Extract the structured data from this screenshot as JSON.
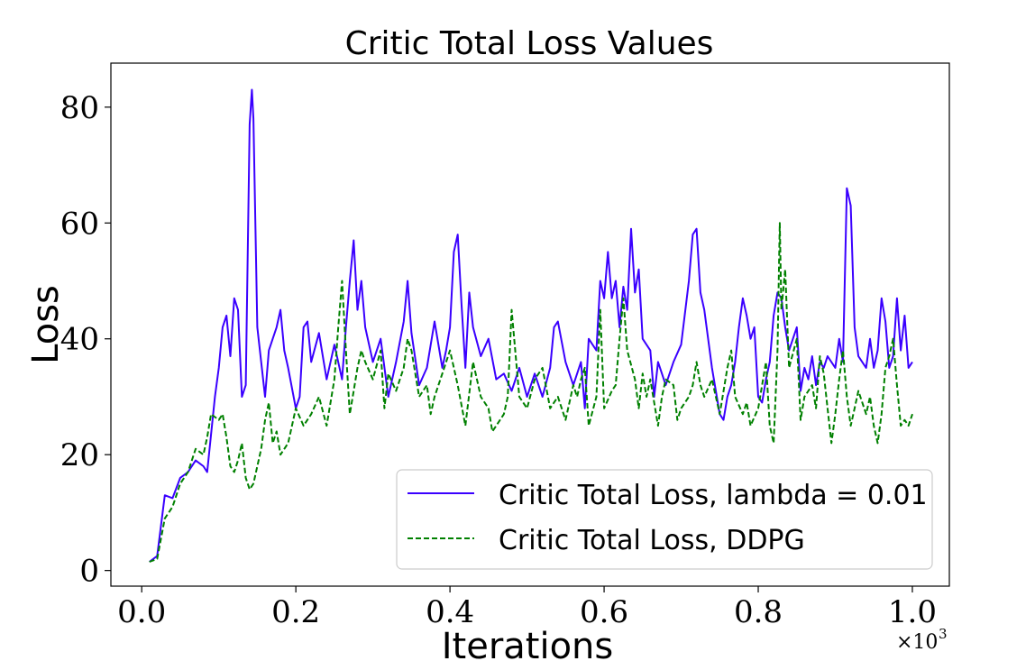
{
  "chart_data": {
    "type": "line",
    "title": "Critic Total Loss Values",
    "xlabel": "Iterations",
    "ylabel": "Loss",
    "x_scale_label": "×10",
    "x_scale_exp": "3",
    "xlim": [
      -0.04,
      1.048
    ],
    "ylim": [
      -2.7,
      87.6
    ],
    "xticks": [
      0.0,
      0.2,
      0.4,
      0.6,
      0.8,
      1.0
    ],
    "xtick_labels": [
      "0.0",
      "0.2",
      "0.4",
      "0.6",
      "0.8",
      "1.0"
    ],
    "yticks": [
      0,
      20,
      40,
      60,
      80
    ],
    "ytick_labels": [
      "0",
      "20",
      "40",
      "60",
      "80"
    ],
    "grid": false,
    "legend_position": "lower-right",
    "series": [
      {
        "name": "Critic Total Loss, lambda = 0.01",
        "color": "#3a00ff",
        "dash": "solid",
        "points": [
          [
            0.01,
            1.5
          ],
          [
            0.02,
            2.5
          ],
          [
            0.03,
            13
          ],
          [
            0.04,
            12.5
          ],
          [
            0.05,
            16
          ],
          [
            0.06,
            17
          ],
          [
            0.07,
            19
          ],
          [
            0.08,
            18
          ],
          [
            0.085,
            17
          ],
          [
            0.095,
            30
          ],
          [
            0.1,
            35
          ],
          [
            0.105,
            42
          ],
          [
            0.11,
            44
          ],
          [
            0.115,
            37
          ],
          [
            0.12,
            47
          ],
          [
            0.125,
            45
          ],
          [
            0.13,
            30
          ],
          [
            0.135,
            32
          ],
          [
            0.14,
            77
          ],
          [
            0.143,
            83
          ],
          [
            0.145,
            78
          ],
          [
            0.15,
            42
          ],
          [
            0.155,
            36
          ],
          [
            0.16,
            30
          ],
          [
            0.165,
            38
          ],
          [
            0.17,
            40
          ],
          [
            0.175,
            42
          ],
          [
            0.18,
            45
          ],
          [
            0.185,
            38
          ],
          [
            0.19,
            35
          ],
          [
            0.2,
            28
          ],
          [
            0.205,
            30
          ],
          [
            0.21,
            42
          ],
          [
            0.215,
            43
          ],
          [
            0.22,
            36
          ],
          [
            0.23,
            41
          ],
          [
            0.24,
            33
          ],
          [
            0.25,
            39
          ],
          [
            0.26,
            33
          ],
          [
            0.265,
            42
          ],
          [
            0.27,
            50
          ],
          [
            0.275,
            57
          ],
          [
            0.28,
            45
          ],
          [
            0.285,
            50
          ],
          [
            0.29,
            42
          ],
          [
            0.3,
            36
          ],
          [
            0.31,
            40
          ],
          [
            0.32,
            30
          ],
          [
            0.33,
            36
          ],
          [
            0.34,
            43
          ],
          [
            0.345,
            50
          ],
          [
            0.35,
            41
          ],
          [
            0.36,
            32
          ],
          [
            0.37,
            35
          ],
          [
            0.38,
            43
          ],
          [
            0.39,
            35
          ],
          [
            0.395,
            38
          ],
          [
            0.4,
            42
          ],
          [
            0.405,
            55
          ],
          [
            0.41,
            58
          ],
          [
            0.415,
            46
          ],
          [
            0.42,
            35
          ],
          [
            0.425,
            48
          ],
          [
            0.43,
            42
          ],
          [
            0.44,
            37
          ],
          [
            0.45,
            40
          ],
          [
            0.46,
            33
          ],
          [
            0.47,
            34
          ],
          [
            0.48,
            31
          ],
          [
            0.49,
            35
          ],
          [
            0.5,
            30
          ],
          [
            0.51,
            34
          ],
          [
            0.52,
            30
          ],
          [
            0.53,
            35
          ],
          [
            0.535,
            42
          ],
          [
            0.54,
            43
          ],
          [
            0.55,
            36
          ],
          [
            0.56,
            32
          ],
          [
            0.57,
            36
          ],
          [
            0.575,
            28
          ],
          [
            0.58,
            40
          ],
          [
            0.59,
            38
          ],
          [
            0.595,
            50
          ],
          [
            0.6,
            47
          ],
          [
            0.605,
            55
          ],
          [
            0.61,
            47
          ],
          [
            0.615,
            50
          ],
          [
            0.62,
            42
          ],
          [
            0.625,
            49
          ],
          [
            0.63,
            45
          ],
          [
            0.635,
            59
          ],
          [
            0.64,
            48
          ],
          [
            0.645,
            52
          ],
          [
            0.65,
            40
          ],
          [
            0.66,
            38
          ],
          [
            0.665,
            30
          ],
          [
            0.67,
            36
          ],
          [
            0.675,
            34
          ],
          [
            0.68,
            32
          ],
          [
            0.69,
            36
          ],
          [
            0.7,
            39
          ],
          [
            0.71,
            50
          ],
          [
            0.715,
            58
          ],
          [
            0.72,
            59
          ],
          [
            0.725,
            48
          ],
          [
            0.73,
            45
          ],
          [
            0.74,
            35
          ],
          [
            0.75,
            27
          ],
          [
            0.755,
            26
          ],
          [
            0.76,
            30
          ],
          [
            0.765,
            32
          ],
          [
            0.77,
            36
          ],
          [
            0.775,
            42
          ],
          [
            0.78,
            47
          ],
          [
            0.785,
            44
          ],
          [
            0.79,
            40
          ],
          [
            0.795,
            42
          ],
          [
            0.8,
            30
          ],
          [
            0.805,
            29
          ],
          [
            0.81,
            33
          ],
          [
            0.815,
            36
          ],
          [
            0.82,
            44
          ],
          [
            0.825,
            48
          ],
          [
            0.83,
            47
          ],
          [
            0.835,
            42
          ],
          [
            0.84,
            38
          ],
          [
            0.845,
            40
          ],
          [
            0.85,
            42
          ],
          [
            0.855,
            31
          ],
          [
            0.86,
            35
          ],
          [
            0.865,
            33
          ],
          [
            0.87,
            37
          ],
          [
            0.875,
            32
          ],
          [
            0.88,
            36
          ],
          [
            0.885,
            35
          ],
          [
            0.89,
            37
          ],
          [
            0.9,
            35
          ],
          [
            0.905,
            40
          ],
          [
            0.91,
            36
          ],
          [
            0.915,
            66
          ],
          [
            0.92,
            63
          ],
          [
            0.925,
            42
          ],
          [
            0.93,
            37
          ],
          [
            0.94,
            35
          ],
          [
            0.945,
            40
          ],
          [
            0.95,
            35
          ],
          [
            0.955,
            38
          ],
          [
            0.96,
            47
          ],
          [
            0.965,
            43
          ],
          [
            0.97,
            35
          ],
          [
            0.975,
            37
          ],
          [
            0.98,
            47
          ],
          [
            0.985,
            38
          ],
          [
            0.99,
            44
          ],
          [
            0.995,
            35
          ],
          [
            1.0,
            36
          ]
        ]
      },
      {
        "name": "Critic Total Loss, DDPG",
        "color": "#008000",
        "dash": "dashed",
        "points": [
          [
            0.01,
            1.5
          ],
          [
            0.02,
            2
          ],
          [
            0.03,
            9
          ],
          [
            0.04,
            11
          ],
          [
            0.05,
            15
          ],
          [
            0.06,
            17
          ],
          [
            0.07,
            21
          ],
          [
            0.08,
            20
          ],
          [
            0.085,
            23
          ],
          [
            0.09,
            27
          ],
          [
            0.1,
            26
          ],
          [
            0.105,
            27
          ],
          [
            0.11,
            23
          ],
          [
            0.115,
            18
          ],
          [
            0.12,
            17
          ],
          [
            0.125,
            19
          ],
          [
            0.13,
            22
          ],
          [
            0.135,
            16
          ],
          [
            0.14,
            14
          ],
          [
            0.145,
            15
          ],
          [
            0.15,
            18
          ],
          [
            0.155,
            21
          ],
          [
            0.16,
            26
          ],
          [
            0.165,
            29
          ],
          [
            0.17,
            22
          ],
          [
            0.175,
            24
          ],
          [
            0.18,
            20
          ],
          [
            0.19,
            22
          ],
          [
            0.2,
            28
          ],
          [
            0.21,
            25
          ],
          [
            0.22,
            27
          ],
          [
            0.23,
            30
          ],
          [
            0.24,
            25
          ],
          [
            0.25,
            33
          ],
          [
            0.255,
            42
          ],
          [
            0.26,
            50
          ],
          [
            0.265,
            38
          ],
          [
            0.27,
            27
          ],
          [
            0.275,
            31
          ],
          [
            0.28,
            35
          ],
          [
            0.285,
            38
          ],
          [
            0.29,
            36
          ],
          [
            0.3,
            33
          ],
          [
            0.31,
            38
          ],
          [
            0.315,
            28
          ],
          [
            0.32,
            34
          ],
          [
            0.33,
            31
          ],
          [
            0.34,
            35
          ],
          [
            0.345,
            40
          ],
          [
            0.35,
            38
          ],
          [
            0.36,
            30
          ],
          [
            0.37,
            32
          ],
          [
            0.375,
            27
          ],
          [
            0.38,
            30
          ],
          [
            0.39,
            34
          ],
          [
            0.4,
            38
          ],
          [
            0.41,
            32
          ],
          [
            0.42,
            25
          ],
          [
            0.43,
            36
          ],
          [
            0.44,
            30
          ],
          [
            0.45,
            28
          ],
          [
            0.455,
            24
          ],
          [
            0.46,
            25
          ],
          [
            0.47,
            27
          ],
          [
            0.475,
            30
          ],
          [
            0.48,
            45
          ],
          [
            0.49,
            30
          ],
          [
            0.5,
            28
          ],
          [
            0.51,
            33
          ],
          [
            0.52,
            35
          ],
          [
            0.53,
            28
          ],
          [
            0.54,
            30
          ],
          [
            0.55,
            26
          ],
          [
            0.56,
            32
          ],
          [
            0.565,
            30
          ],
          [
            0.57,
            33
          ],
          [
            0.575,
            35
          ],
          [
            0.58,
            25
          ],
          [
            0.59,
            30
          ],
          [
            0.595,
            45
          ],
          [
            0.6,
            28
          ],
          [
            0.61,
            31
          ],
          [
            0.615,
            32
          ],
          [
            0.62,
            40
          ],
          [
            0.625,
            47
          ],
          [
            0.63,
            38
          ],
          [
            0.64,
            33
          ],
          [
            0.645,
            28
          ],
          [
            0.65,
            34
          ],
          [
            0.655,
            30
          ],
          [
            0.66,
            33
          ],
          [
            0.67,
            25
          ],
          [
            0.675,
            30
          ],
          [
            0.68,
            33
          ],
          [
            0.69,
            32
          ],
          [
            0.695,
            26
          ],
          [
            0.7,
            28
          ],
          [
            0.71,
            30
          ],
          [
            0.715,
            32
          ],
          [
            0.72,
            36
          ],
          [
            0.725,
            32
          ],
          [
            0.73,
            30
          ],
          [
            0.74,
            33
          ],
          [
            0.75,
            27
          ],
          [
            0.76,
            35
          ],
          [
            0.765,
            38
          ],
          [
            0.77,
            30
          ],
          [
            0.78,
            27
          ],
          [
            0.785,
            29
          ],
          [
            0.79,
            25
          ],
          [
            0.8,
            28
          ],
          [
            0.81,
            36
          ],
          [
            0.815,
            25
          ],
          [
            0.82,
            22
          ],
          [
            0.825,
            38
          ],
          [
            0.828,
            60
          ],
          [
            0.83,
            45
          ],
          [
            0.835,
            52
          ],
          [
            0.84,
            35
          ],
          [
            0.85,
            40
          ],
          [
            0.855,
            26
          ],
          [
            0.86,
            30
          ],
          [
            0.87,
            32
          ],
          [
            0.875,
            28
          ],
          [
            0.88,
            37
          ],
          [
            0.885,
            34
          ],
          [
            0.89,
            28
          ],
          [
            0.895,
            22
          ],
          [
            0.9,
            27
          ],
          [
            0.905,
            33
          ],
          [
            0.91,
            38
          ],
          [
            0.915,
            30
          ],
          [
            0.92,
            25
          ],
          [
            0.925,
            28
          ],
          [
            0.93,
            31
          ],
          [
            0.94,
            27
          ],
          [
            0.945,
            30
          ],
          [
            0.95,
            25
          ],
          [
            0.955,
            22
          ],
          [
            0.96,
            27
          ],
          [
            0.965,
            35
          ],
          [
            0.97,
            37
          ],
          [
            0.975,
            40
          ],
          [
            0.98,
            32
          ],
          [
            0.985,
            25
          ],
          [
            0.99,
            26
          ],
          [
            0.995,
            25
          ],
          [
            1.0,
            27
          ]
        ]
      }
    ]
  }
}
